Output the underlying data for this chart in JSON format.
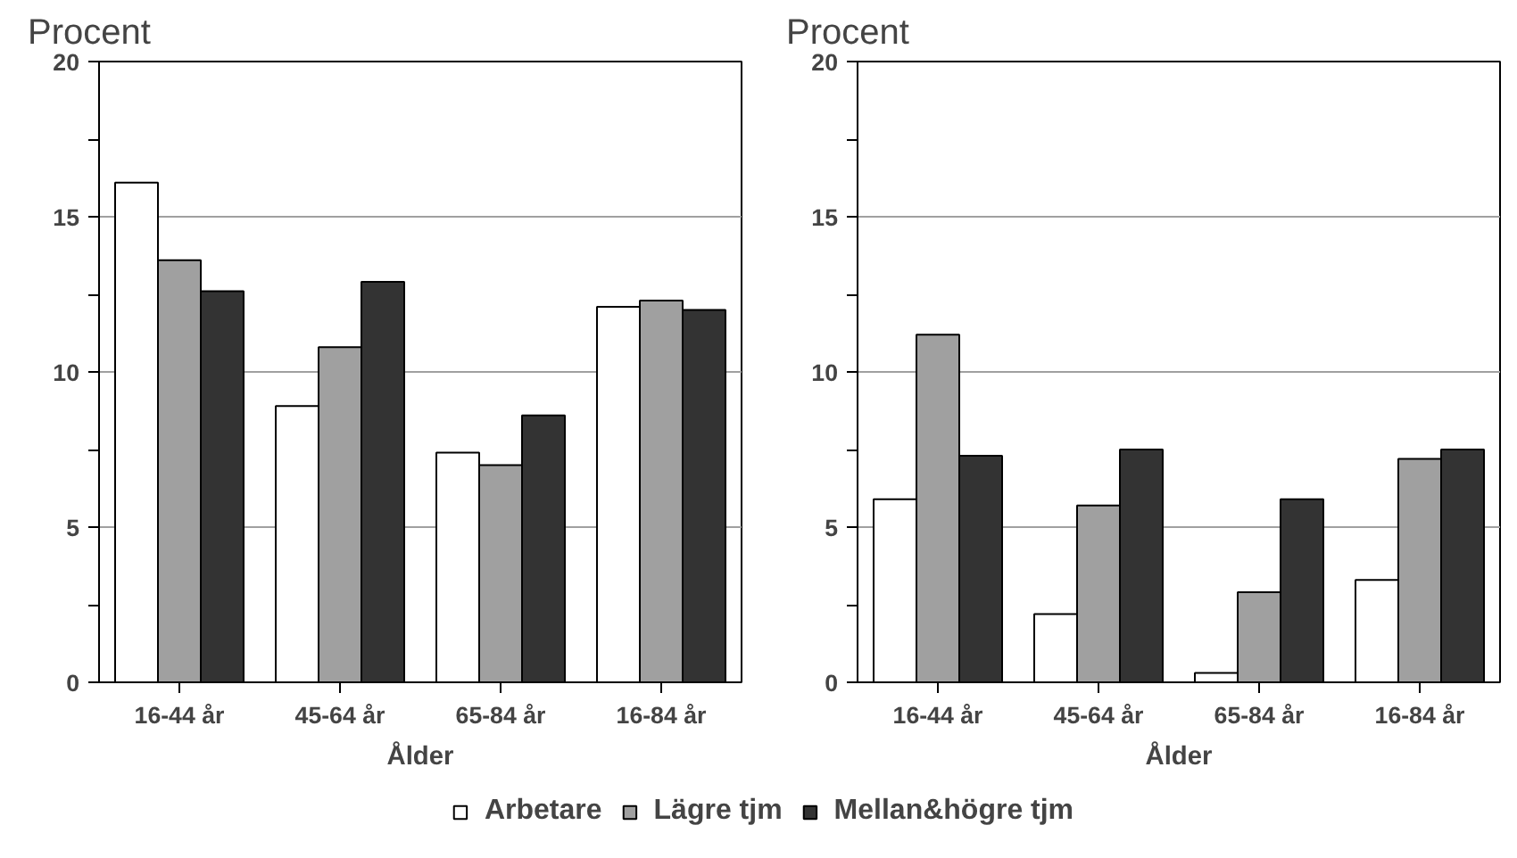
{
  "chart_data": [
    {
      "type": "bar",
      "ylabel": "Procent",
      "xlabel": "Ålder",
      "categories": [
        "16-44 år",
        "45-64 år",
        "65-84 år",
        "16-84 år"
      ],
      "series": [
        {
          "name": "Arbetare",
          "color": "#ffffff",
          "values": [
            16.1,
            8.9,
            7.4,
            12.1
          ]
        },
        {
          "name": "Lägre tjm",
          "color": "#a0a0a0",
          "values": [
            13.6,
            10.8,
            7.0,
            12.3
          ]
        },
        {
          "name": "Mellan&högre tjm",
          "color": "#333333",
          "values": [
            12.6,
            12.9,
            8.6,
            12.0
          ]
        }
      ],
      "ylim": [
        0,
        20
      ],
      "yticks": [
        0,
        {
          "value": 2.5,
          "label": null
        },
        5,
        {
          "value": 7.5,
          "label": null
        },
        10,
        {
          "value": 12.5,
          "label": null
        },
        15,
        {
          "value": 17.5,
          "label": null
        },
        20
      ],
      "grid": "y",
      "legend": "bottom"
    },
    {
      "type": "bar",
      "ylabel": "Procent",
      "xlabel": "Ålder",
      "categories": [
        "16-44 år",
        "45-64 år",
        "65-84 år",
        "16-84 år"
      ],
      "series": [
        {
          "color": "#ffffff",
          "values": [
            5.9,
            2.2,
            0.3,
            3.3
          ]
        },
        {
          "color": "#a0a0a0",
          "values": [
            11.2,
            5.7,
            2.9,
            7.2
          ]
        },
        {
          "color": "#333333",
          "values": [
            7.3,
            7.5,
            5.9,
            7.5
          ]
        }
      ],
      "ylim": [
        0,
        20
      ],
      "yticks": [
        0,
        {
          "value": 2.5,
          "label": null
        },
        5,
        {
          "value": 7.5,
          "label": null
        },
        10,
        {
          "value": 12.5,
          "label": null
        },
        15,
        {
          "value": 17.5,
          "label": null
        },
        20
      ],
      "grid": "y"
    }
  ]
}
